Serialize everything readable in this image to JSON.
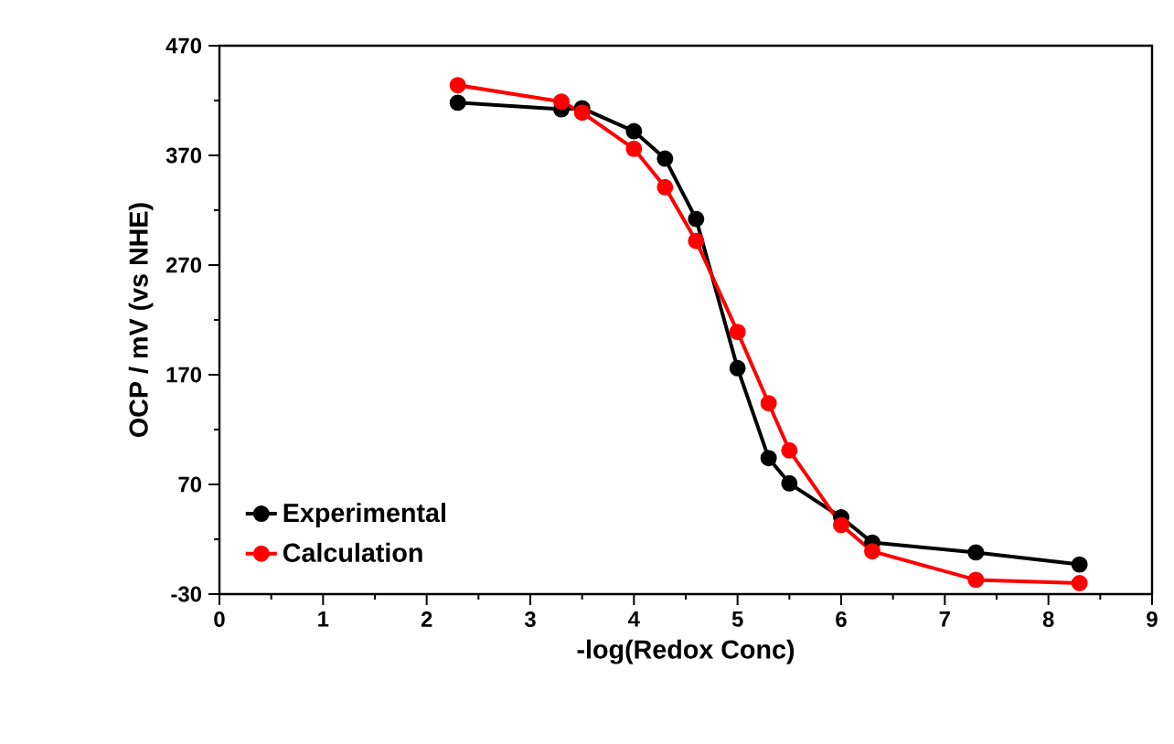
{
  "chart_data": {
    "type": "line",
    "xlabel": "-log(Redox Conc)",
    "ylabel": "OCP / mV (vs NHE)",
    "xlim": [
      0,
      9
    ],
    "ylim": [
      -30,
      470
    ],
    "xticks": [
      0,
      1,
      2,
      3,
      4,
      5,
      6,
      7,
      8,
      9
    ],
    "yticks": [
      -30,
      70,
      170,
      270,
      370,
      470
    ],
    "marker": "circle",
    "line_style": "solid",
    "legend": "bottom left",
    "grid": false,
    "series": [
      {
        "name": "Experimental",
        "color": "#000000",
        "x": [
          2.3,
          3.3,
          3.5,
          4.0,
          4.3,
          4.6,
          5.0,
          5.3,
          5.5,
          6.0,
          6.3,
          7.3,
          8.3
        ],
        "values": [
          418,
          412,
          413,
          392,
          367,
          312,
          176,
          94,
          71,
          40,
          17,
          8,
          -3
        ]
      },
      {
        "name": "Calculation",
        "color": "#ff0000",
        "x": [
          2.3,
          3.3,
          3.5,
          4.0,
          4.3,
          4.6,
          5.0,
          5.3,
          5.5,
          6.0,
          6.3,
          7.3,
          8.3
        ],
        "values": [
          434,
          419,
          409,
          376,
          341,
          292,
          209,
          144,
          101,
          33,
          9,
          -17,
          -20
        ]
      }
    ]
  }
}
